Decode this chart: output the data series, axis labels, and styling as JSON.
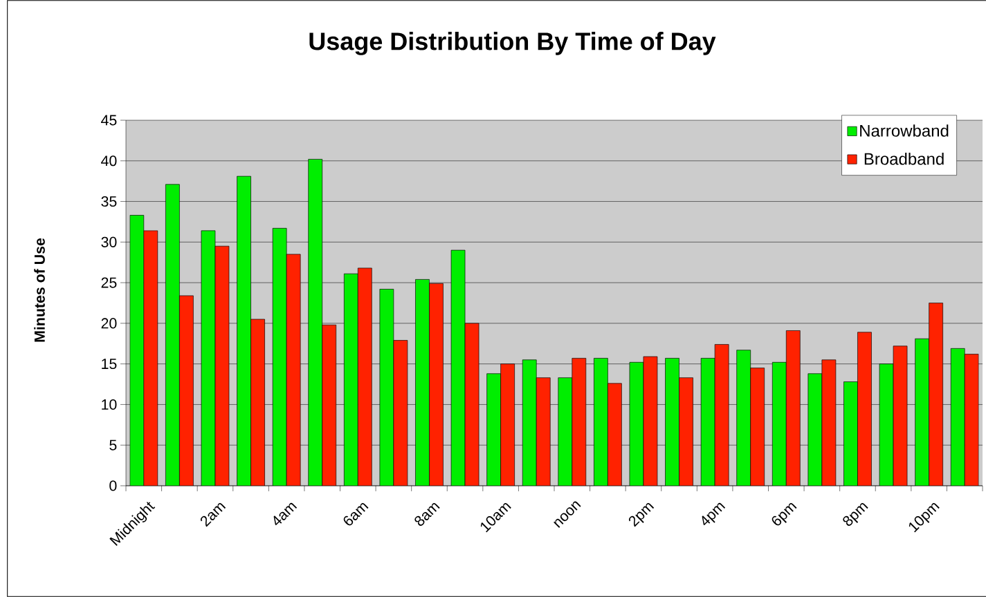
{
  "chart_data": {
    "type": "bar",
    "title": "Usage Distribution By Time of Day",
    "ylabel": "Minutes of Use",
    "categories": [
      "Midnight",
      null,
      "2am",
      null,
      "4am",
      null,
      "6am",
      null,
      "8am",
      null,
      "10am",
      null,
      "noon",
      null,
      "2pm",
      null,
      "4pm",
      null,
      "6pm",
      null,
      "8pm",
      null,
      "10pm",
      null
    ],
    "series": [
      {
        "name": "Narrowband",
        "color": "#00ee00",
        "values": [
          33.3,
          37.1,
          31.4,
          38.1,
          31.7,
          40.2,
          26.1,
          24.2,
          25.4,
          29.0,
          13.8,
          15.5,
          13.3,
          15.7,
          15.2,
          15.7,
          15.7,
          16.7,
          15.2,
          13.8,
          12.8,
          15.0,
          18.1,
          16.9
        ]
      },
      {
        "name": "Broadband",
        "color": "#ff2200",
        "values": [
          31.4,
          23.4,
          29.5,
          20.5,
          28.5,
          19.8,
          26.8,
          17.9,
          24.9,
          20.0,
          15.0,
          13.3,
          15.7,
          12.6,
          15.9,
          13.3,
          17.4,
          14.5,
          19.1,
          15.5,
          18.9,
          17.2,
          22.5,
          16.2
        ]
      }
    ],
    "ylim": [
      0,
      45
    ],
    "yticks": [
      0,
      5,
      10,
      15,
      20,
      25,
      30,
      35,
      40,
      45
    ],
    "grid": "y",
    "legend": "top right"
  }
}
